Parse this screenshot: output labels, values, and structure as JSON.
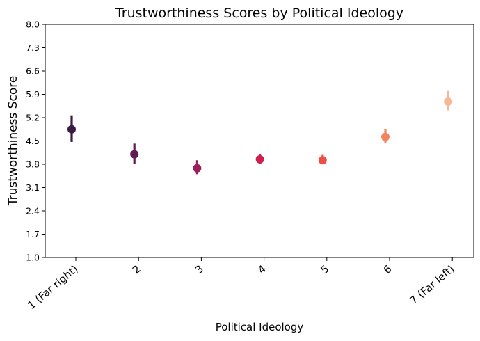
{
  "chart_data": {
    "type": "scatter",
    "title": "Trustworthiness Scores by Political Ideology",
    "xlabel": "Political Ideology",
    "ylabel": "Trustworthiness Score",
    "ylim": [
      1.0,
      8.0
    ],
    "yticks": [
      "1.0",
      "1.7",
      "2.4",
      "3.1",
      "3.8",
      "4.5",
      "5.2",
      "5.9",
      "6.6",
      "7.3",
      "8.0"
    ],
    "categories": [
      "1 (Far right)",
      "2",
      "3",
      "4",
      "5",
      "6",
      "7 (Far left)"
    ],
    "values": [
      4.85,
      4.1,
      3.68,
      3.95,
      3.92,
      4.62,
      5.68
    ],
    "error_low": [
      4.47,
      3.8,
      3.5,
      3.82,
      3.8,
      4.45,
      5.42
    ],
    "error_high": [
      5.27,
      4.42,
      3.92,
      4.1,
      4.08,
      4.85,
      6.0
    ],
    "colors": [
      "#3a1b42",
      "#611c51",
      "#9a1f5c",
      "#cf1f4e",
      "#ec4f45",
      "#f3835d",
      "#f6b894"
    ],
    "grid": false
  }
}
